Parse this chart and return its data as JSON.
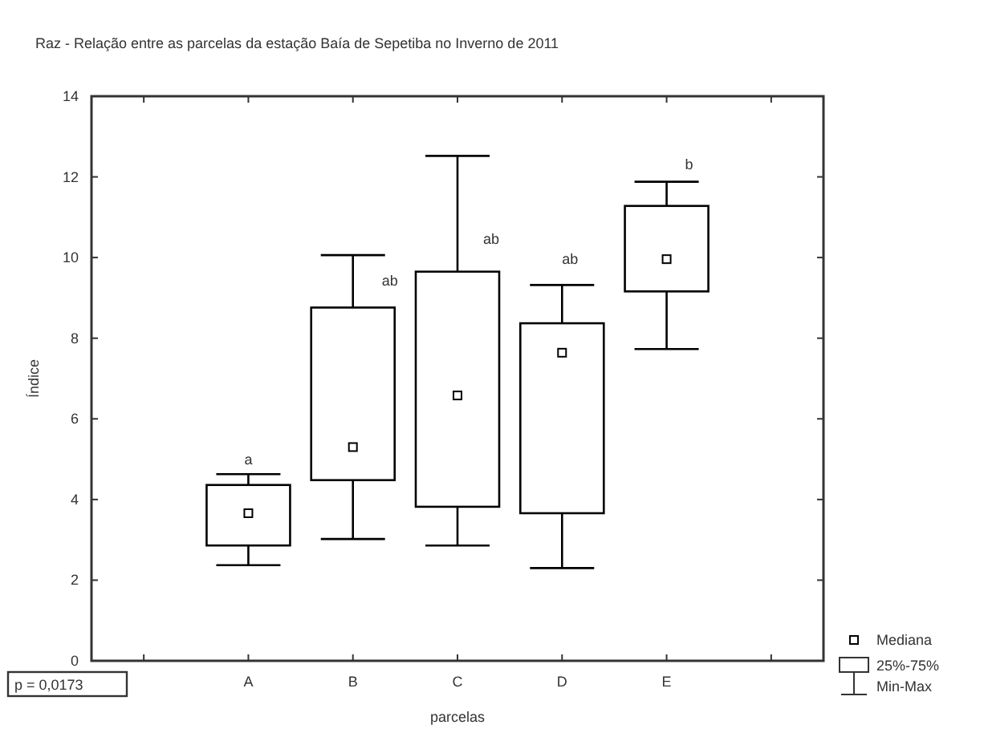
{
  "chart_data": {
    "type": "box",
    "title": "Raz - Relação entre as parcelas da estação Baía de Sepetiba no Inverno de 2011",
    "xlabel": "parcelas",
    "ylabel": "Índice",
    "categories": [
      "A",
      "B",
      "C",
      "D",
      "E"
    ],
    "boxes": [
      {
        "low": 2.37,
        "q1": 2.86,
        "median": 3.66,
        "q3": 4.36,
        "high": 4.63
      },
      {
        "low": 3.02,
        "q1": 4.48,
        "median": 5.3,
        "q3": 8.76,
        "high": 10.06
      },
      {
        "low": 2.86,
        "q1": 3.82,
        "median": 6.58,
        "q3": 9.65,
        "high": 12.52
      },
      {
        "low": 2.3,
        "q1": 3.66,
        "median": 7.64,
        "q3": 8.37,
        "high": 9.32
      },
      {
        "low": 7.73,
        "q1": 9.16,
        "median": 9.96,
        "q3": 11.28,
        "high": 11.88
      }
    ],
    "color": "#000000",
    "marker": "square",
    "grid": false,
    "ylim": [
      0,
      14
    ],
    "yticks": [
      0,
      2,
      4,
      6,
      8,
      10,
      12,
      14
    ],
    "annotations": [
      "a",
      "ab",
      "ab",
      "ab",
      "b",
      "p = 0,0173",
      "Mediana",
      "25%-75%",
      "Min-Max"
    ]
  }
}
